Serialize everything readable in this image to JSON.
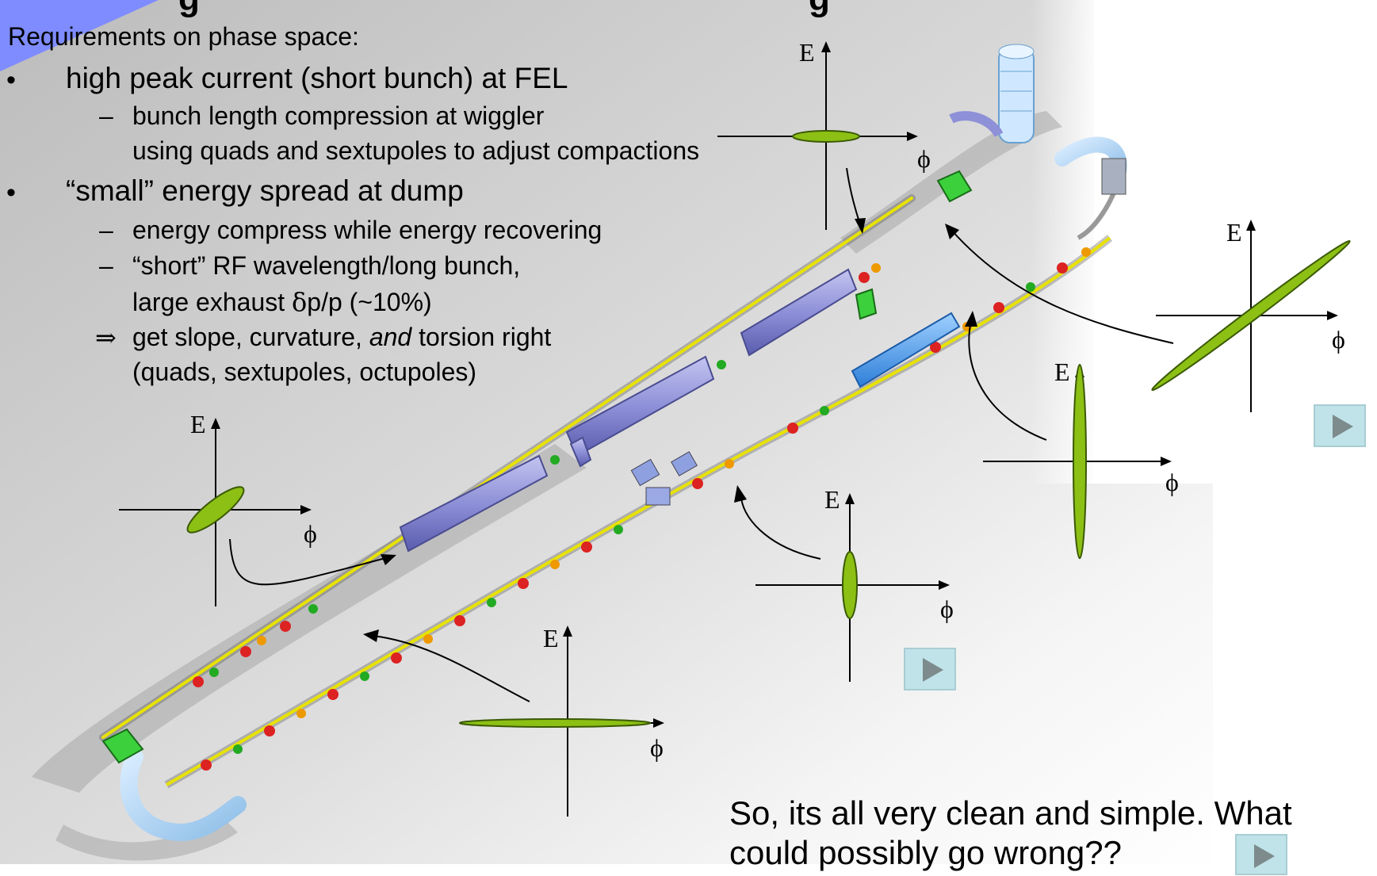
{
  "title": {
    "fragment_left": "g",
    "fragment_right": "g"
  },
  "requirements": {
    "heading": "Requirements on phase space:",
    "bullet1": "high peak current (short bunch) at FEL",
    "bullet1_sub1_line1": "bunch length compression at wiggler",
    "bullet1_sub1_line2": "using quads and sextupoles to adjust compactions",
    "bullet2": "“small” energy spread at dump",
    "bullet2_sub1": "energy compress while energy recovering",
    "bullet2_sub2_line1": "“short” RF wavelength/long bunch,",
    "bullet2_sub2_line2_prefix": "large exhaust ",
    "bullet2_sub2_line2_symbol": "δ",
    "bullet2_sub2_line2_suffix": "p/p (~10%)",
    "implies_symbol": "⇒",
    "implies_text_1": "get slope, curvature",
    "implies_text_2": ", ",
    "implies_text_and": "and",
    "implies_text_3": " torsion right",
    "implies_line2": "(quads, sextupoles, octupoles)",
    "bullet_char": "•",
    "dash_char": "–"
  },
  "phase_plots": {
    "energy_label": "E",
    "phase_label": "ϕ"
  },
  "bottom_text": {
    "line1": "So, its all very clean and simple. What",
    "line2": "could possibly go wrong??"
  },
  "colors": {
    "ellipse_fill": "#8cc014",
    "ellipse_stroke": "#3b5a05",
    "play_button_bg": "#bfe3e8",
    "header_accent": "#7f8cff"
  }
}
